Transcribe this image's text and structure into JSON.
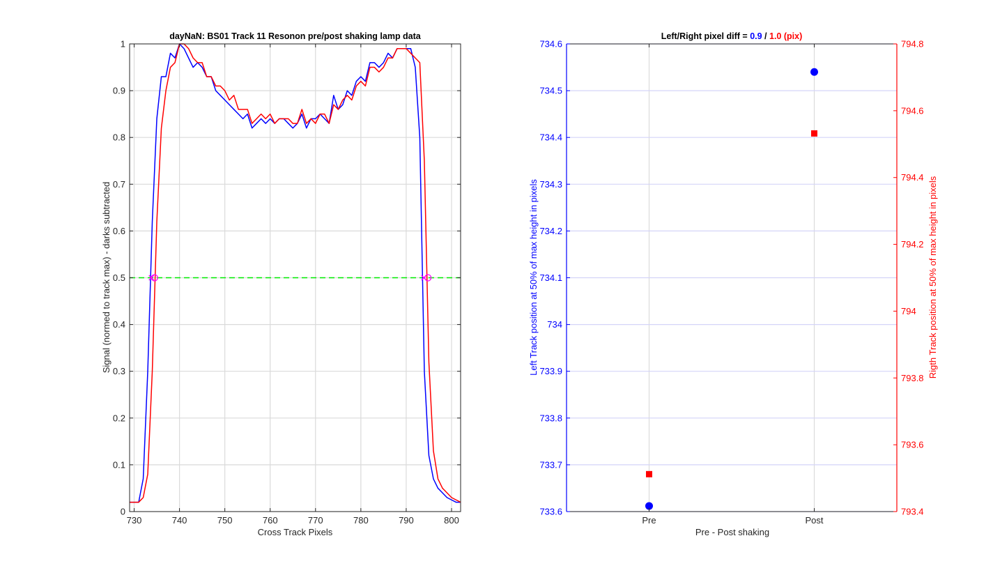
{
  "chart_data": [
    {
      "type": "line",
      "title": "dayNaN: BS01  Track 11 Resonon pre/post shaking lamp data",
      "xlabel": "Cross Track Pixels",
      "ylabel": "Signal (normed to track max) - darks subtracted",
      "xlim": [
        729,
        802
      ],
      "ylim": [
        0,
        1
      ],
      "xticks": [
        730,
        740,
        750,
        760,
        770,
        780,
        790,
        800
      ],
      "yticks": [
        0,
        0.1,
        0.2,
        0.3,
        0.4,
        0.5,
        0.6,
        0.7,
        0.8,
        0.9,
        1
      ],
      "ytick_labels": [
        "0",
        "0.1",
        "0.2",
        "0.3",
        "0.4",
        "0.5",
        "0.6",
        "0.7",
        "0.8",
        "0.9",
        "1"
      ],
      "grid": true,
      "series": [
        {
          "color": "#0000ff",
          "x": [
            729,
            730,
            731,
            732,
            733,
            734,
            735,
            736,
            737,
            738,
            739,
            740,
            741,
            742,
            743,
            744,
            745,
            746,
            747,
            748,
            749,
            750,
            751,
            752,
            753,
            754,
            755,
            756,
            757,
            758,
            759,
            760,
            761,
            762,
            763,
            764,
            765,
            766,
            767,
            768,
            769,
            770,
            771,
            772,
            773,
            774,
            775,
            776,
            777,
            778,
            779,
            780,
            781,
            782,
            783,
            784,
            785,
            786,
            787,
            788,
            789,
            790,
            791,
            792,
            793,
            794,
            795,
            796,
            797,
            798,
            799,
            800,
            801,
            802
          ],
          "y": [
            0.02,
            0.02,
            0.02,
            0.07,
            0.3,
            0.62,
            0.84,
            0.93,
            0.93,
            0.98,
            0.97,
            1.0,
            0.99,
            0.97,
            0.95,
            0.96,
            0.95,
            0.93,
            0.93,
            0.9,
            0.89,
            0.88,
            0.87,
            0.86,
            0.85,
            0.84,
            0.85,
            0.82,
            0.83,
            0.84,
            0.83,
            0.84,
            0.83,
            0.84,
            0.84,
            0.83,
            0.82,
            0.83,
            0.85,
            0.82,
            0.84,
            0.84,
            0.85,
            0.84,
            0.83,
            0.89,
            0.86,
            0.87,
            0.9,
            0.89,
            0.92,
            0.93,
            0.92,
            0.96,
            0.96,
            0.95,
            0.96,
            0.98,
            0.97,
            0.99,
            0.99,
            0.99,
            0.99,
            0.95,
            0.8,
            0.3,
            0.12,
            0.07,
            0.05,
            0.04,
            0.03,
            0.025,
            0.02,
            0.02
          ]
        },
        {
          "color": "#ff0000",
          "x": [
            729,
            730,
            731,
            732,
            733,
            734,
            735,
            736,
            737,
            738,
            739,
            740,
            741,
            742,
            743,
            744,
            745,
            746,
            747,
            748,
            749,
            750,
            751,
            752,
            753,
            754,
            755,
            756,
            757,
            758,
            759,
            760,
            761,
            762,
            763,
            764,
            765,
            766,
            767,
            768,
            769,
            770,
            771,
            772,
            773,
            774,
            775,
            776,
            777,
            778,
            779,
            780,
            781,
            782,
            783,
            784,
            785,
            786,
            787,
            788,
            789,
            790,
            791,
            792,
            793,
            794,
            795,
            796,
            797,
            798,
            799,
            800,
            801,
            802
          ],
          "y": [
            0.02,
            0.02,
            0.02,
            0.03,
            0.08,
            0.3,
            0.62,
            0.82,
            0.9,
            0.95,
            0.96,
            1.0,
            1.0,
            0.99,
            0.97,
            0.96,
            0.96,
            0.93,
            0.93,
            0.91,
            0.91,
            0.9,
            0.88,
            0.89,
            0.86,
            0.86,
            0.86,
            0.83,
            0.84,
            0.85,
            0.84,
            0.85,
            0.83,
            0.84,
            0.84,
            0.84,
            0.83,
            0.83,
            0.86,
            0.83,
            0.84,
            0.83,
            0.85,
            0.85,
            0.83,
            0.87,
            0.86,
            0.88,
            0.89,
            0.88,
            0.91,
            0.92,
            0.91,
            0.95,
            0.95,
            0.94,
            0.95,
            0.97,
            0.97,
            0.99,
            0.99,
            0.99,
            0.98,
            0.97,
            0.96,
            0.75,
            0.32,
            0.13,
            0.07,
            0.05,
            0.04,
            0.03,
            0.025,
            0.02
          ]
        }
      ],
      "reference_line": {
        "y": 0.5,
        "color": "#00ee00",
        "style": "dashed"
      },
      "half_max_markers": [
        {
          "x": 733.8,
          "y": 0.5,
          "shape": "x"
        },
        {
          "x": 734.5,
          "y": 0.5,
          "shape": "circle"
        },
        {
          "x": 793.9,
          "y": 0.5,
          "shape": "x"
        },
        {
          "x": 794.8,
          "y": 0.5,
          "shape": "circle"
        }
      ],
      "marker_color": "#ff00ff"
    },
    {
      "type": "scatter",
      "title_parts": [
        {
          "text": "Left/Right pixel diff = ",
          "color": "#000000"
        },
        {
          "text": "0.9",
          "color": "#0000ff"
        },
        {
          "text": " / ",
          "color": "#000000"
        },
        {
          "text": "1.0 (pix)",
          "color": "#ff0000"
        }
      ],
      "xlabel": "Pre - Post shaking",
      "categories": [
        "Pre",
        "Post"
      ],
      "xlim": [
        0.5,
        2.5
      ],
      "ylabel_left": "Left Track position at 50% of max height in pixels",
      "ylabel_right": "Rigth Track position at 50% of max height in pixels",
      "ylim_left": [
        733.6,
        734.6
      ],
      "ylim_right": [
        793.4,
        794.8
      ],
      "yticks_left": [
        733.6,
        733.7,
        733.8,
        733.9,
        734,
        734.1,
        734.2,
        734.3,
        734.4,
        734.5,
        734.6
      ],
      "ytick_labels_left": [
        "733.6",
        "733.7",
        "733.8",
        "733.9",
        "734",
        "734.1",
        "734.2",
        "734.3",
        "734.4",
        "734.5",
        "734.6"
      ],
      "yticks_right": [
        793.4,
        793.6,
        793.8,
        794,
        794.2,
        794.4,
        794.6,
        794.8
      ],
      "ytick_labels_right": [
        "793.4",
        "793.6",
        "793.8",
        "794",
        "794.2",
        "794.4",
        "794.6",
        "794.8"
      ],
      "left_color": "#0000ff",
      "right_color": "#ff0000",
      "series": [
        {
          "axis": "left",
          "marker": "circle",
          "color": "#0000ff",
          "values": [
            733.612,
            734.54
          ]
        },
        {
          "axis": "right",
          "marker": "square",
          "color": "#ff0000",
          "values": [
            793.512,
            794.532
          ]
        }
      ]
    }
  ]
}
